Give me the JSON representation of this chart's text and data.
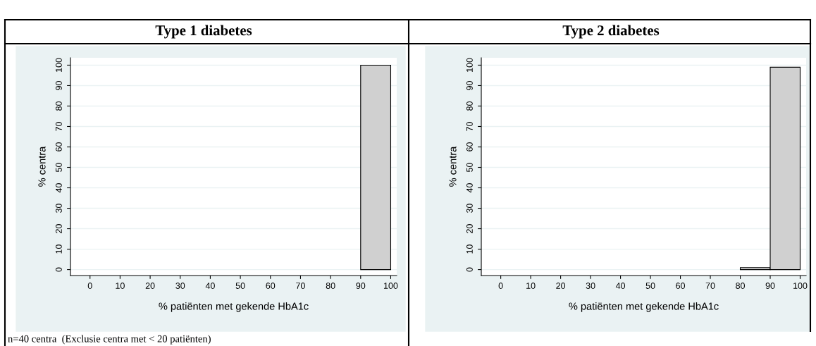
{
  "chart_data": [
    {
      "type": "histogram",
      "title": "Type 1 diabetes",
      "xlabel": "% patiënten met gekende HbA1c",
      "ylabel": "% centra",
      "bins": [
        90,
        100
      ],
      "values": [
        100
      ],
      "color": "#d0d0d0",
      "xlim": [
        -6.5,
        102
      ],
      "ylim": [
        -2.9,
        103.6
      ],
      "xticks": [
        0,
        10,
        20,
        30,
        40,
        50,
        60,
        70,
        80,
        90,
        100
      ],
      "yticks": [
        0,
        10,
        20,
        30,
        40,
        50,
        60,
        70,
        80,
        90,
        100
      ],
      "grid": "y",
      "annotations": [
        "n=40 centra  (Exclusie centra met < 20 patiënten)"
      ]
    },
    {
      "type": "histogram",
      "title": "Type 2 diabetes",
      "xlabel": "% patiënten met gekende HbA1c",
      "ylabel": "% centra",
      "bins": [
        80,
        90,
        100
      ],
      "values": [
        1,
        99
      ],
      "color": "#d0d0d0",
      "xlim": [
        -6.5,
        102
      ],
      "ylim": [
        -2.9,
        103.6
      ],
      "xticks": [
        0,
        10,
        20,
        30,
        40,
        50,
        60,
        70,
        80,
        90,
        100
      ],
      "yticks": [
        0,
        10,
        20,
        30,
        40,
        50,
        60,
        70,
        80,
        90,
        100
      ],
      "grid": "y"
    }
  ]
}
